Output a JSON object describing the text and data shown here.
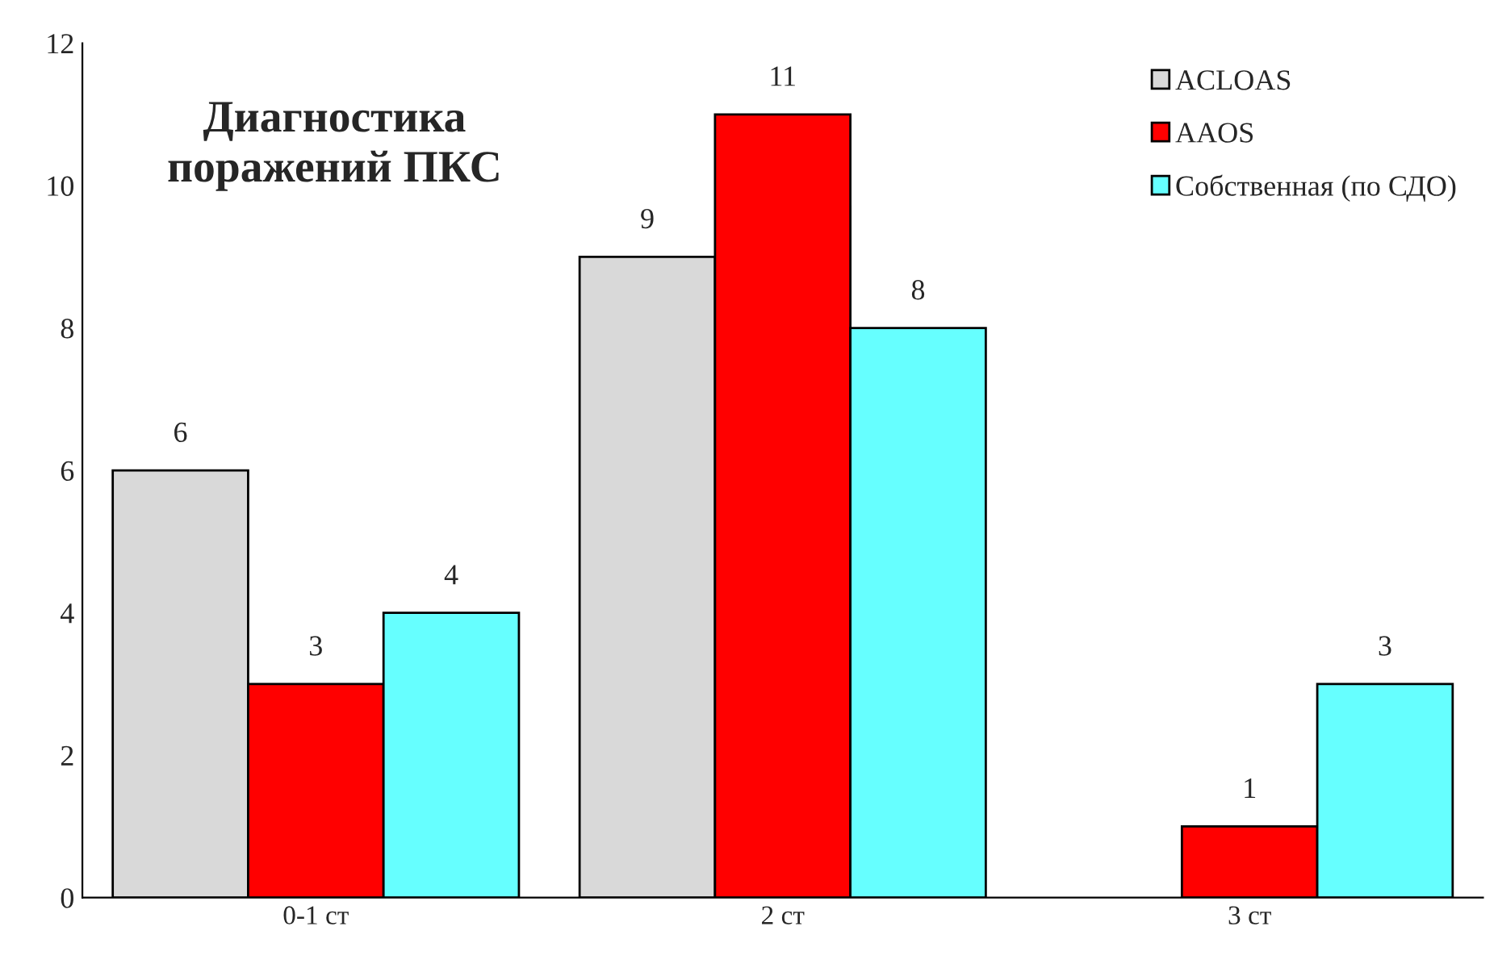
{
  "chart_data": {
    "type": "bar",
    "title": "Диагностика\nпоражений ПКС",
    "categories": [
      "0-1 ст",
      "2 ст",
      "3 ст"
    ],
    "series": [
      {
        "name": "ACLOAS",
        "color": "#d9d9d9",
        "values": [
          6,
          9,
          null
        ]
      },
      {
        "name": "AAOS",
        "color": "#ff0000",
        "values": [
          3,
          11,
          1
        ]
      },
      {
        "name": "Собственная (по СДО)",
        "color": "#66ffff",
        "values": [
          4,
          8,
          3
        ]
      }
    ],
    "ylim": [
      0,
      12
    ],
    "yticks": [
      0,
      2,
      4,
      6,
      8,
      10,
      12
    ],
    "grid": false,
    "legend": "top right",
    "data_labels": true
  }
}
